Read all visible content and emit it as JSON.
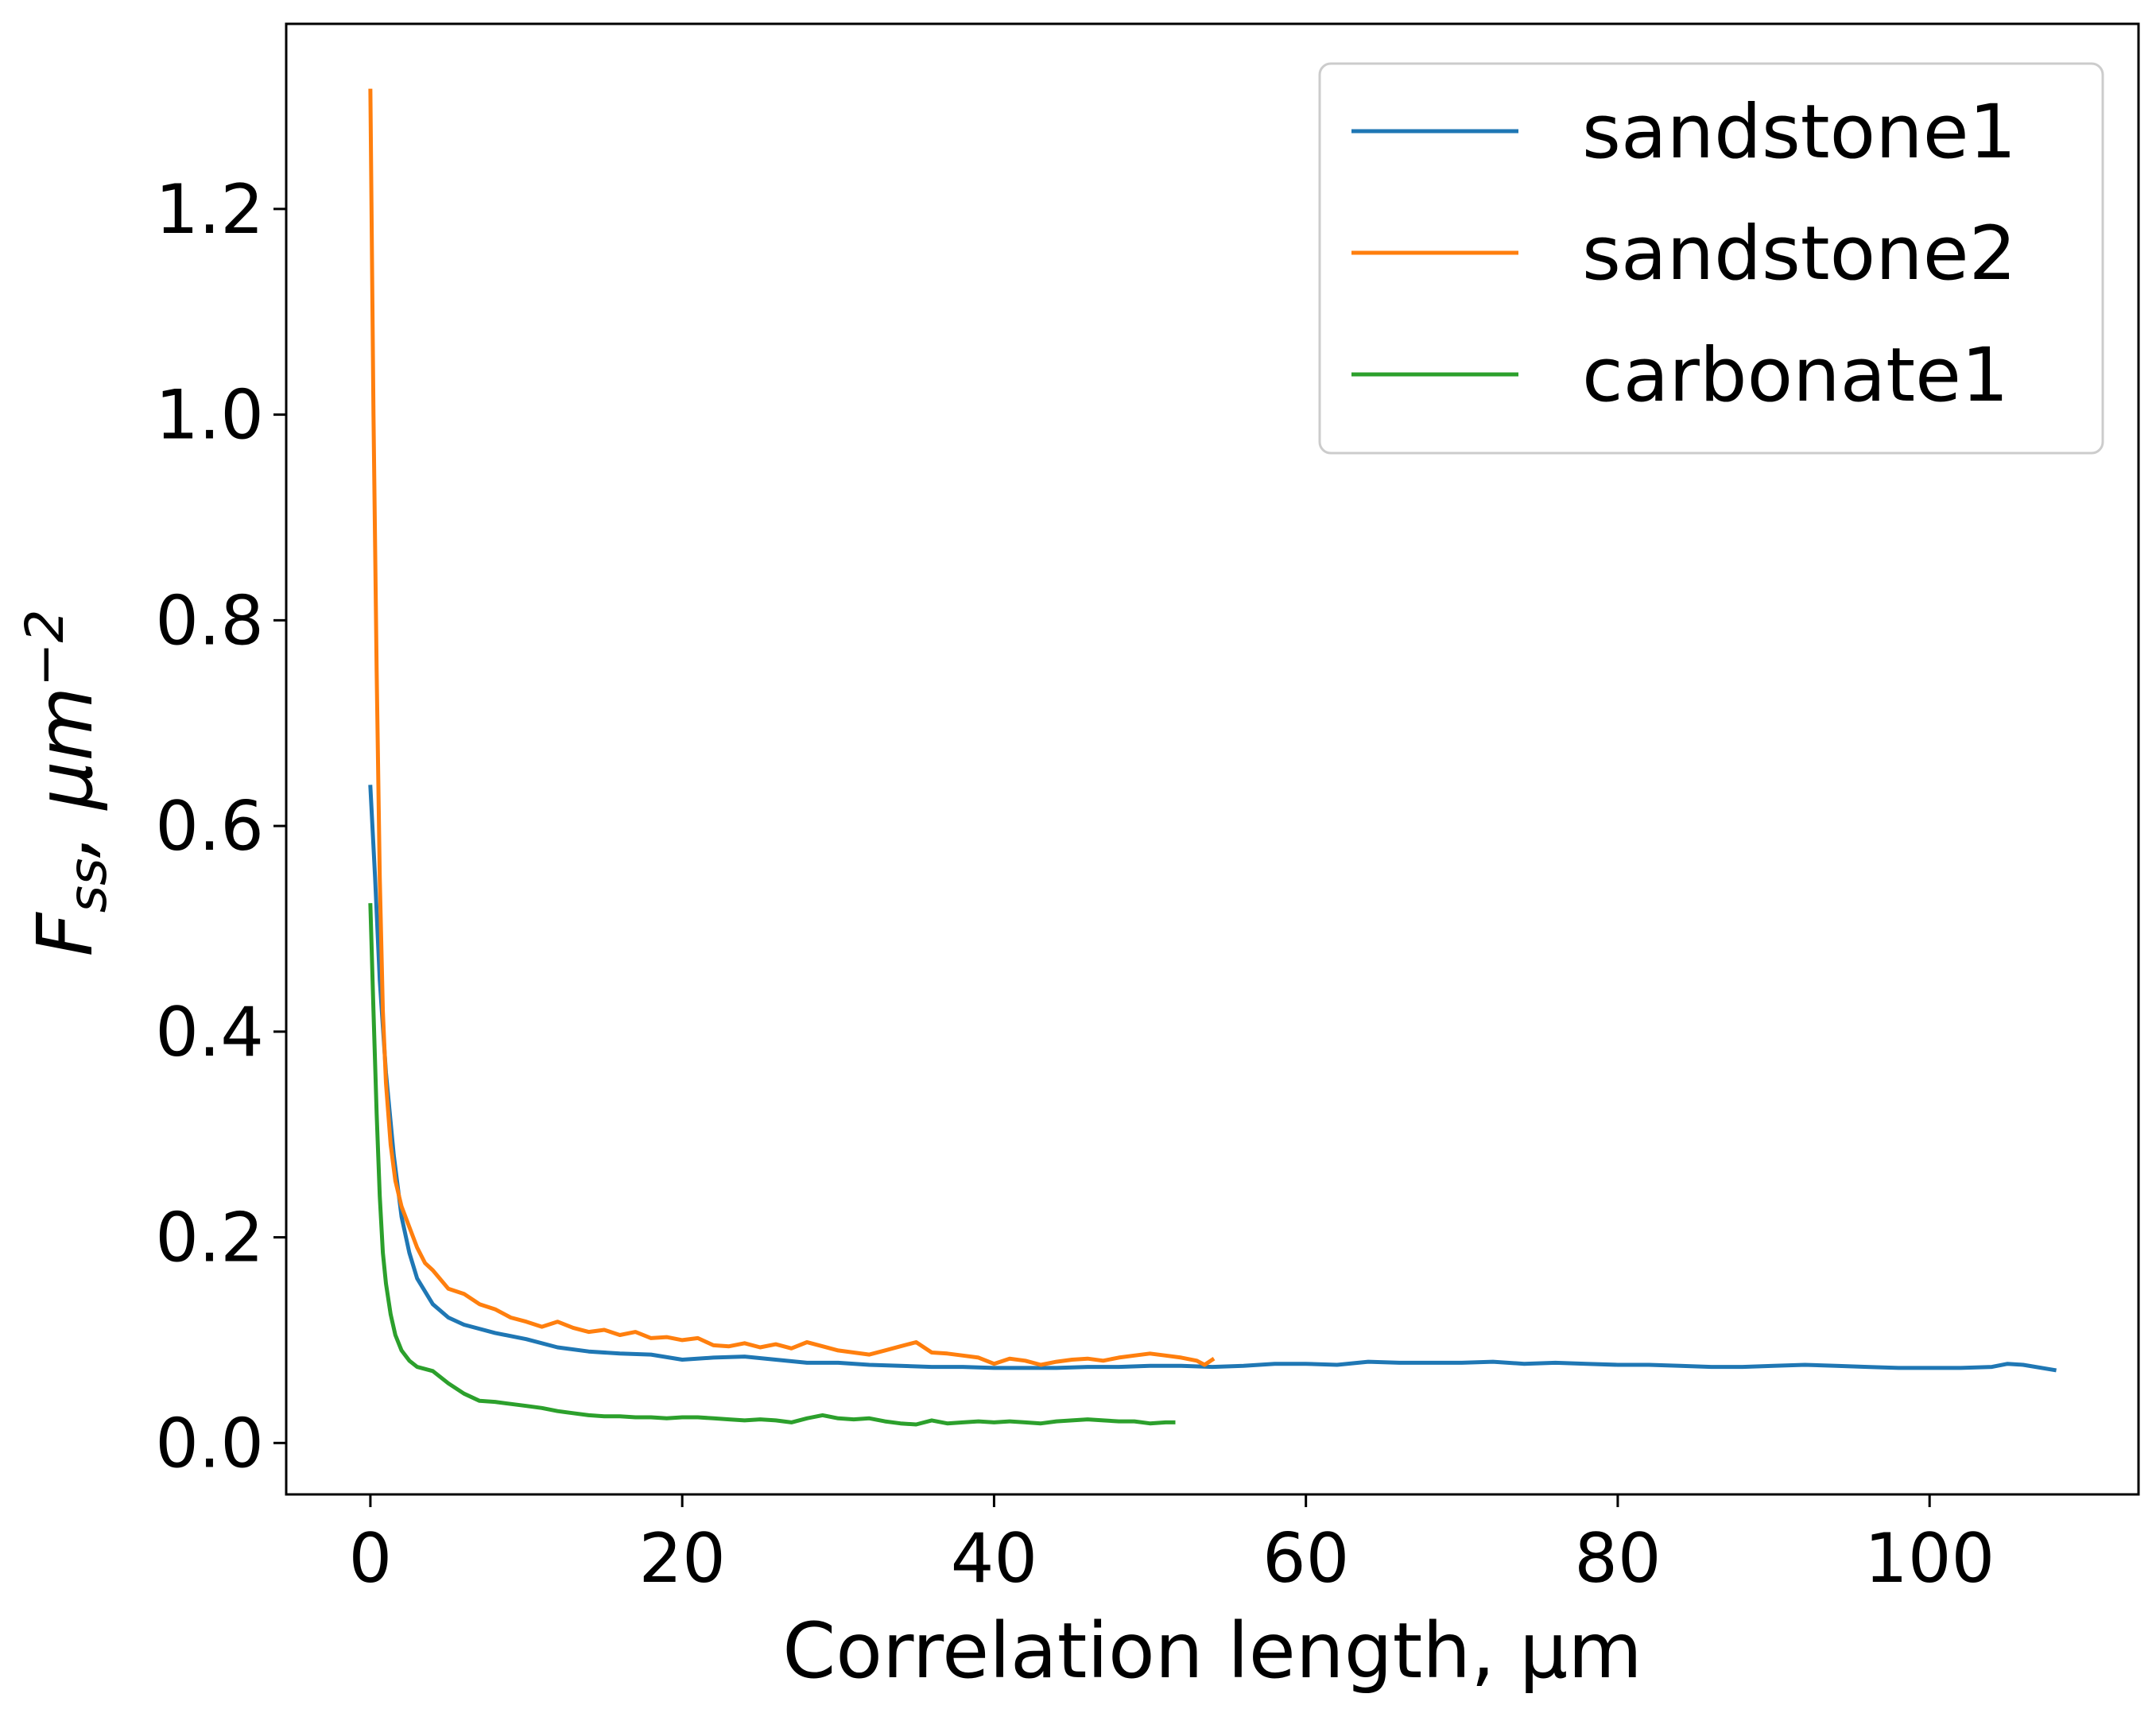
{
  "chart_data": {
    "type": "line",
    "title": "",
    "xlabel": "Correlation length, µm",
    "ylabel": {
      "main": "F",
      "subscript": "ss",
      "unit_base": ", μm",
      "unit_exp": "−2"
    },
    "xlim": [
      -5.4,
      113.4
    ],
    "ylim": [
      -0.05,
      1.38
    ],
    "xticks": [
      0,
      20,
      40,
      60,
      80,
      100
    ],
    "xtick_labels": [
      "0",
      "20",
      "40",
      "60",
      "80",
      "100"
    ],
    "yticks": [
      0.0,
      0.2,
      0.4,
      0.6,
      0.8,
      1.0,
      1.2
    ],
    "ytick_labels": [
      "0.0",
      "0.2",
      "0.4",
      "0.6",
      "0.8",
      "1.0",
      "1.2"
    ],
    "grid": false,
    "legend_position": "top-right",
    "series": [
      {
        "name": "sandstone1",
        "color": "#1f77b4",
        "x": [
          0.0,
          0.3,
          0.6,
          1.0,
          1.5,
          2.0,
          2.5,
          3.0,
          4.0,
          5.0,
          6.0,
          8.0,
          10.0,
          12.0,
          14.0,
          16.0,
          18.0,
          20.0,
          22.0,
          24.0,
          26.0,
          28.0,
          30.0,
          32.0,
          34.0,
          36.0,
          38.0,
          40.0,
          42.0,
          44.0,
          46.0,
          48.0,
          50.0,
          52.0,
          54.0,
          56.0,
          58.0,
          60.0,
          62.0,
          64.0,
          66.0,
          68.0,
          70.0,
          72.0,
          74.0,
          76.0,
          78.0,
          80.0,
          82.0,
          84.0,
          86.0,
          88.0,
          90.0,
          92.0,
          94.0,
          96.0,
          98.0,
          100.0,
          102.0,
          104.0,
          105.0,
          106.0,
          108.0
        ],
        "y": [
          0.638,
          0.55,
          0.45,
          0.36,
          0.28,
          0.22,
          0.185,
          0.16,
          0.135,
          0.122,
          0.115,
          0.107,
          0.101,
          0.093,
          0.089,
          0.087,
          0.086,
          0.081,
          0.083,
          0.084,
          0.081,
          0.078,
          0.078,
          0.076,
          0.075,
          0.074,
          0.074,
          0.073,
          0.073,
          0.073,
          0.074,
          0.074,
          0.075,
          0.075,
          0.074,
          0.075,
          0.077,
          0.077,
          0.076,
          0.079,
          0.078,
          0.078,
          0.078,
          0.079,
          0.077,
          0.078,
          0.077,
          0.076,
          0.076,
          0.075,
          0.074,
          0.074,
          0.075,
          0.076,
          0.075,
          0.074,
          0.073,
          0.073,
          0.073,
          0.074,
          0.077,
          0.076,
          0.071
        ]
      },
      {
        "name": "sandstone2",
        "color": "#ff7f0e",
        "x": [
          0.0,
          0.2,
          0.4,
          0.6,
          0.8,
          1.0,
          1.3,
          1.6,
          2.0,
          2.5,
          3.0,
          3.5,
          4.0,
          5.0,
          6.0,
          7.0,
          8.0,
          9.0,
          10.0,
          11.0,
          12.0,
          13.0,
          14.0,
          15.0,
          16.0,
          17.0,
          18.0,
          19.0,
          20.0,
          21.0,
          22.0,
          23.0,
          24.0,
          25.0,
          26.0,
          27.0,
          28.0,
          29.0,
          30.0,
          31.0,
          32.0,
          33.0,
          34.0,
          35.0,
          36.0,
          37.0,
          38.0,
          39.0,
          40.0,
          41.0,
          42.0,
          43.0,
          44.0,
          45.0,
          46.0,
          47.0,
          48.0,
          49.0,
          50.0,
          51.0,
          52.0,
          53.0,
          53.5,
          54.0
        ],
        "y": [
          1.315,
          1.0,
          0.75,
          0.55,
          0.42,
          0.35,
          0.29,
          0.255,
          0.23,
          0.21,
          0.19,
          0.175,
          0.168,
          0.15,
          0.145,
          0.135,
          0.13,
          0.122,
          0.118,
          0.113,
          0.118,
          0.112,
          0.108,
          0.11,
          0.105,
          0.108,
          0.102,
          0.103,
          0.1,
          0.102,
          0.095,
          0.094,
          0.097,
          0.093,
          0.096,
          0.092,
          0.098,
          0.094,
          0.09,
          0.088,
          0.086,
          0.09,
          0.094,
          0.098,
          0.088,
          0.087,
          0.085,
          0.083,
          0.077,
          0.082,
          0.08,
          0.076,
          0.079,
          0.081,
          0.082,
          0.08,
          0.083,
          0.085,
          0.087,
          0.085,
          0.083,
          0.08,
          0.076,
          0.081
        ]
      },
      {
        "name": "carbonate1",
        "color": "#2ca02c",
        "x": [
          0.0,
          0.2,
          0.4,
          0.6,
          0.8,
          1.0,
          1.3,
          1.6,
          2.0,
          2.5,
          3.0,
          4.0,
          5.0,
          6.0,
          7.0,
          8.0,
          9.0,
          10.0,
          11.0,
          12.0,
          13.0,
          14.0,
          15.0,
          16.0,
          17.0,
          18.0,
          19.0,
          20.0,
          21.0,
          22.0,
          23.0,
          24.0,
          25.0,
          26.0,
          27.0,
          28.0,
          29.0,
          30.0,
          31.0,
          32.0,
          33.0,
          34.0,
          35.0,
          36.0,
          37.0,
          38.0,
          39.0,
          40.0,
          41.0,
          42.0,
          43.0,
          44.0,
          45.0,
          46.0,
          47.0,
          48.0,
          49.0,
          50.0,
          51.0,
          51.5
        ],
        "y": [
          0.523,
          0.42,
          0.32,
          0.24,
          0.185,
          0.155,
          0.125,
          0.105,
          0.09,
          0.08,
          0.074,
          0.07,
          0.058,
          0.048,
          0.041,
          0.04,
          0.038,
          0.036,
          0.034,
          0.031,
          0.029,
          0.027,
          0.026,
          0.026,
          0.025,
          0.025,
          0.024,
          0.025,
          0.025,
          0.024,
          0.023,
          0.022,
          0.023,
          0.022,
          0.02,
          0.024,
          0.027,
          0.024,
          0.023,
          0.024,
          0.021,
          0.019,
          0.018,
          0.022,
          0.019,
          0.02,
          0.021,
          0.02,
          0.021,
          0.02,
          0.019,
          0.021,
          0.022,
          0.023,
          0.022,
          0.021,
          0.021,
          0.019,
          0.02,
          0.02
        ]
      }
    ]
  }
}
